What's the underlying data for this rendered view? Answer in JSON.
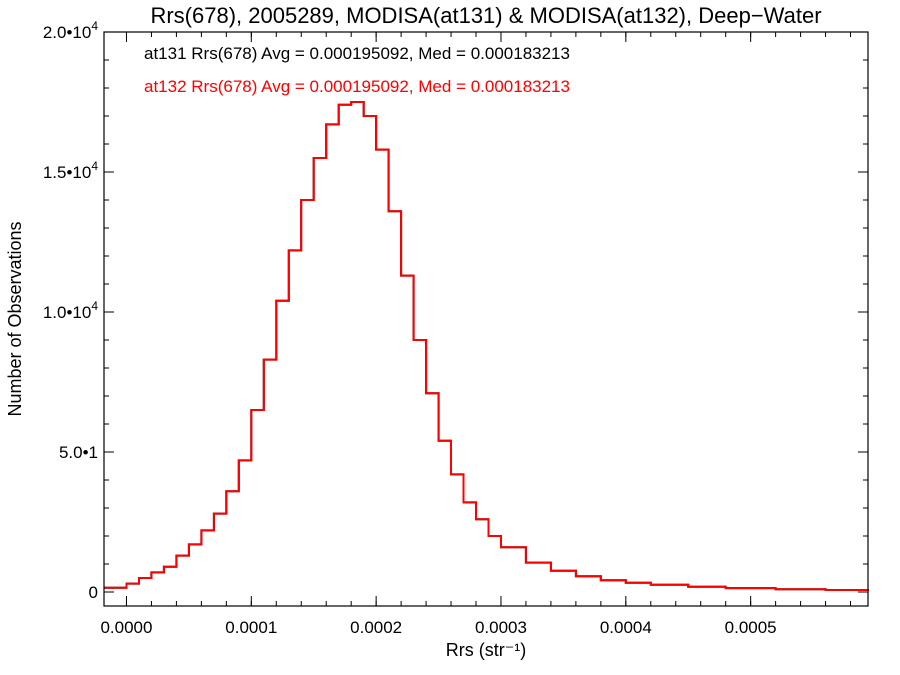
{
  "chart_data": {
    "type": "histogram",
    "title": "Rrs(678), 2005289, MODISA(at131) & MODISA(at132), Deep−Water",
    "xlabel": "Rrs (str⁻¹)",
    "ylabel": "Number of Observations",
    "xlim": [
      -1.8e-05,
      0.000594
    ],
    "ylim": [
      -500,
      20000
    ],
    "x_ticks": [
      {
        "value": 0.0,
        "label": "0.0000"
      },
      {
        "value": 0.0001,
        "label": "0.0001"
      },
      {
        "value": 0.0002,
        "label": "0.0002"
      },
      {
        "value": 0.0003,
        "label": "0.0003"
      },
      {
        "value": 0.0004,
        "label": "0.0004"
      },
      {
        "value": 0.0005,
        "label": "0.0005"
      }
    ],
    "x_minor_step": 2e-05,
    "y_ticks": [
      {
        "value": 0,
        "mantissa": "0",
        "exponent": ""
      },
      {
        "value": 5000,
        "mantissa": "5.0•1",
        "exponent": ""
      },
      {
        "value": 10000,
        "mantissa": "1.0•10",
        "exponent": "4"
      },
      {
        "value": 15000,
        "mantissa": "1.5•10",
        "exponent": "4"
      },
      {
        "value": 20000,
        "mantissa": "2.0•10",
        "exponent": "4"
      }
    ],
    "y_minor_step": 1000,
    "annotations": [
      {
        "text": "at131 Rrs(678) Avg = 0.000195092, Med = 0.000183213",
        "color": "#000000"
      },
      {
        "text": "at132 Rrs(678) Avg = 0.000195092, Med = 0.000183213",
        "color": "#ff0000"
      }
    ],
    "series": [
      {
        "name": "at131",
        "color": "#000000",
        "x": [
          -1.8e-05,
          0.0,
          1e-05,
          2e-05,
          3e-05,
          4e-05,
          5e-05,
          6e-05,
          7e-05,
          8e-05,
          9e-05,
          0.0001,
          0.00011,
          0.00012,
          0.00013,
          0.00014,
          0.00015,
          0.00016,
          0.00017,
          0.00018,
          0.00019,
          0.0002,
          0.00021,
          0.00022,
          0.00023,
          0.00024,
          0.00025,
          0.00026,
          0.00027,
          0.00028,
          0.00029,
          0.0003,
          0.00032,
          0.00034,
          0.00036,
          0.00038,
          0.0004,
          0.00042,
          0.00045,
          0.00048,
          0.00052,
          0.00056,
          0.000594
        ],
        "y": [
          150,
          300,
          500,
          700,
          900,
          1300,
          1700,
          2200,
          2800,
          3600,
          4700,
          6500,
          8300,
          10400,
          12200,
          14000,
          15500,
          16700,
          17400,
          17500,
          17000,
          15800,
          13600,
          11300,
          9000,
          7100,
          5400,
          4200,
          3200,
          2600,
          2000,
          1600,
          1050,
          760,
          560,
          420,
          330,
          260,
          190,
          140,
          100,
          70,
          40
        ]
      },
      {
        "name": "at132",
        "color": "#ff0000",
        "x": [
          -1.8e-05,
          0.0,
          1e-05,
          2e-05,
          3e-05,
          4e-05,
          5e-05,
          6e-05,
          7e-05,
          8e-05,
          9e-05,
          0.0001,
          0.00011,
          0.00012,
          0.00013,
          0.00014,
          0.00015,
          0.00016,
          0.00017,
          0.00018,
          0.00019,
          0.0002,
          0.00021,
          0.00022,
          0.00023,
          0.00024,
          0.00025,
          0.00026,
          0.00027,
          0.00028,
          0.00029,
          0.0003,
          0.00032,
          0.00034,
          0.00036,
          0.00038,
          0.0004,
          0.00042,
          0.00045,
          0.00048,
          0.00052,
          0.00056,
          0.000594
        ],
        "y": [
          150,
          300,
          500,
          700,
          900,
          1300,
          1700,
          2200,
          2800,
          3600,
          4700,
          6500,
          8300,
          10400,
          12200,
          14000,
          15500,
          16700,
          17400,
          17500,
          17000,
          15800,
          13600,
          11300,
          9000,
          7100,
          5400,
          4200,
          3200,
          2600,
          2000,
          1600,
          1050,
          760,
          560,
          420,
          330,
          260,
          190,
          140,
          100,
          70,
          40
        ]
      }
    ],
    "grid": false,
    "legend": "top-left"
  }
}
